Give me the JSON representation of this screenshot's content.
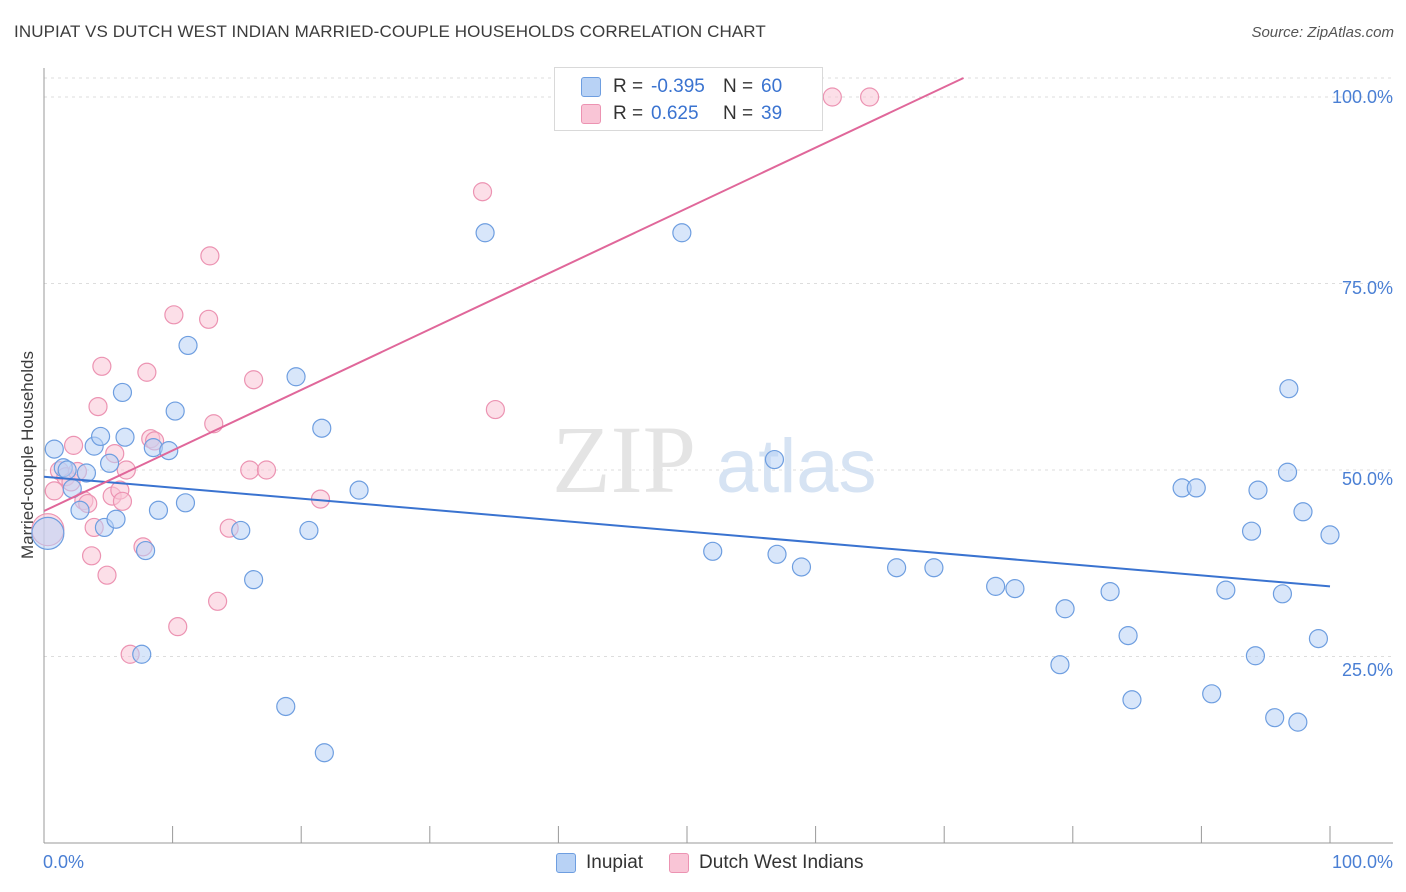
{
  "header": {
    "title": "INUPIAT VS DUTCH WEST INDIAN MARRIED-COUPLE HOUSEHOLDS CORRELATION CHART",
    "source": "Source: ZipAtlas.com"
  },
  "watermark": {
    "zip": "ZIP",
    "atlas": "atlas"
  },
  "colors": {
    "blue": "#3a73d0",
    "blue_fill": "#b8d2f5",
    "blue_stroke": "#6e9ee0",
    "pink": "#e0679a",
    "pink_fill": "#f9c5d6",
    "pink_stroke": "#ec93b2",
    "tick_label": "#4a7fd4"
  },
  "legend": {
    "items": [
      {
        "r_label": "R =",
        "r_value": "-0.395",
        "n_label": "N =",
        "n_value": "60"
      },
      {
        "r_label": "R =",
        "r_value": "0.625",
        "n_label": "N =",
        "n_value": "39"
      }
    ]
  },
  "chart_data": {
    "type": "scatter",
    "title": "INUPIAT VS DUTCH WEST INDIAN MARRIED-COUPLE HOUSEHOLDS CORRELATION CHART",
    "xlabel": "",
    "ylabel": "Married-couple Households",
    "xlim": [
      0,
      100
    ],
    "ylim": [
      0,
      102
    ],
    "x_tick_labels": {
      "min": "0.0%",
      "max": "100.0%"
    },
    "y_ticks": [
      {
        "value": 100,
        "label": "100.0%"
      },
      {
        "value": 75,
        "label": "75.0%"
      },
      {
        "value": 50,
        "label": "50.0%"
      },
      {
        "value": 25,
        "label": "25.0%"
      }
    ],
    "series": [
      {
        "name": "Inupiat",
        "color": "#3a73d0",
        "trend": {
          "x0": 0,
          "y0": 49.1,
          "x1": 100,
          "y1": 34.4
        },
        "points": [
          [
            0.3,
            41.5
          ],
          [
            0.8,
            52.8
          ],
          [
            1.5,
            50.3
          ],
          [
            1.8,
            50.0
          ],
          [
            2.2,
            47.5
          ],
          [
            2.8,
            44.6
          ],
          [
            3.3,
            49.6
          ],
          [
            3.9,
            53.2
          ],
          [
            4.4,
            54.5
          ],
          [
            4.7,
            42.3
          ],
          [
            5.1,
            50.9
          ],
          [
            5.6,
            43.4
          ],
          [
            6.1,
            60.4
          ],
          [
            6.3,
            54.4
          ],
          [
            7.6,
            25.3
          ],
          [
            7.9,
            39.2
          ],
          [
            8.5,
            53.0
          ],
          [
            8.9,
            44.6
          ],
          [
            9.7,
            52.6
          ],
          [
            10.2,
            57.9
          ],
          [
            11.0,
            45.6
          ],
          [
            11.2,
            66.7
          ],
          [
            15.3,
            41.9
          ],
          [
            16.3,
            35.3
          ],
          [
            18.8,
            18.3
          ],
          [
            19.6,
            62.5
          ],
          [
            20.6,
            41.9
          ],
          [
            21.6,
            55.6
          ],
          [
            21.8,
            12.1
          ],
          [
            24.5,
            47.3
          ],
          [
            34.3,
            81.8
          ],
          [
            49.6,
            81.8
          ],
          [
            52.0,
            39.1
          ],
          [
            56.8,
            51.4
          ],
          [
            57.0,
            38.7
          ],
          [
            58.9,
            37.0
          ],
          [
            66.3,
            36.9
          ],
          [
            69.2,
            36.9
          ],
          [
            74.0,
            34.4
          ],
          [
            75.5,
            34.1
          ],
          [
            79.4,
            31.4
          ],
          [
            79.0,
            23.9
          ],
          [
            82.9,
            33.7
          ],
          [
            84.3,
            27.8
          ],
          [
            84.6,
            19.2
          ],
          [
            88.5,
            47.6
          ],
          [
            89.6,
            47.6
          ],
          [
            90.8,
            20.0
          ],
          [
            91.9,
            33.9
          ],
          [
            93.9,
            41.8
          ],
          [
            94.2,
            25.1
          ],
          [
            94.4,
            47.3
          ],
          [
            95.7,
            16.8
          ],
          [
            96.3,
            33.4
          ],
          [
            96.7,
            49.7
          ],
          [
            96.8,
            60.9
          ],
          [
            97.5,
            16.2
          ],
          [
            97.9,
            44.4
          ],
          [
            99.1,
            27.4
          ],
          [
            100.0,
            41.3
          ]
        ]
      },
      {
        "name": "Dutch West Indians",
        "color": "#e0679a",
        "trend": {
          "x0": 0,
          "y0": 44.5,
          "x1": 71.5,
          "y1": 100.0
        },
        "points": [
          [
            0.3,
            42.0
          ],
          [
            0.8,
            47.2
          ],
          [
            1.2,
            49.9
          ],
          [
            1.7,
            49.1
          ],
          [
            2.1,
            48.4
          ],
          [
            2.3,
            53.3
          ],
          [
            2.6,
            49.8
          ],
          [
            3.1,
            45.9
          ],
          [
            3.4,
            45.5
          ],
          [
            3.7,
            38.5
          ],
          [
            3.9,
            42.3
          ],
          [
            4.2,
            58.5
          ],
          [
            4.5,
            63.9
          ],
          [
            4.9,
            35.9
          ],
          [
            5.3,
            46.5
          ],
          [
            5.5,
            52.2
          ],
          [
            5.9,
            47.3
          ],
          [
            6.1,
            45.8
          ],
          [
            6.4,
            50.0
          ],
          [
            6.7,
            25.3
          ],
          [
            7.7,
            39.7
          ],
          [
            8.0,
            63.1
          ],
          [
            8.3,
            54.2
          ],
          [
            8.6,
            53.9
          ],
          [
            10.1,
            70.8
          ],
          [
            10.4,
            29.0
          ],
          [
            12.8,
            70.2
          ],
          [
            12.9,
            78.7
          ],
          [
            13.2,
            56.2
          ],
          [
            13.5,
            32.4
          ],
          [
            14.4,
            42.2
          ],
          [
            16.0,
            50.0
          ],
          [
            16.3,
            62.1
          ],
          [
            17.3,
            50.0
          ],
          [
            21.5,
            46.1
          ],
          [
            34.1,
            87.3
          ],
          [
            35.1,
            58.1
          ],
          [
            61.3,
            100.0
          ],
          [
            64.2,
            100.0
          ]
        ]
      }
    ]
  }
}
